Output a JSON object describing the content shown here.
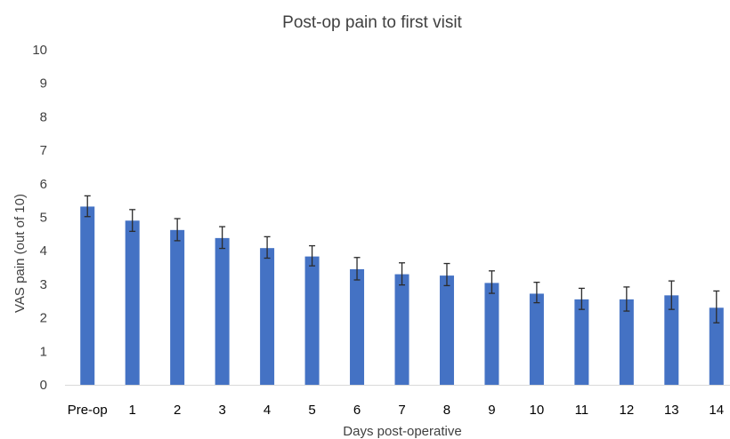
{
  "chart_data": {
    "type": "bar",
    "title": "Post-op pain to first visit",
    "xlabel": "Days post-operative",
    "ylabel": "VAS pain (out of 10)",
    "ylim": [
      0,
      10
    ],
    "yticks": [
      0,
      1,
      2,
      3,
      4,
      5,
      6,
      7,
      8,
      9,
      10
    ],
    "categories": [
      "Pre-op",
      "1",
      "2",
      "3",
      "4",
      "5",
      "6",
      "7",
      "8",
      "9",
      "10",
      "11",
      "12",
      "13",
      "14"
    ],
    "values": [
      5.32,
      4.9,
      4.62,
      4.38,
      4.08,
      3.83,
      3.45,
      3.3,
      3.26,
      3.04,
      2.72,
      2.55,
      2.55,
      2.67,
      2.3
    ],
    "error_upper": [
      5.64,
      5.23,
      4.96,
      4.72,
      4.42,
      4.15,
      3.8,
      3.64,
      3.62,
      3.4,
      3.06,
      2.88,
      2.92,
      3.1,
      2.8
    ],
    "error_lower": [
      5.02,
      4.58,
      4.3,
      4.07,
      3.78,
      3.55,
      3.13,
      2.98,
      2.96,
      2.73,
      2.45,
      2.25,
      2.2,
      2.25,
      1.85
    ],
    "bar_color": "#4472C4",
    "grid": false,
    "legend": "none"
  }
}
